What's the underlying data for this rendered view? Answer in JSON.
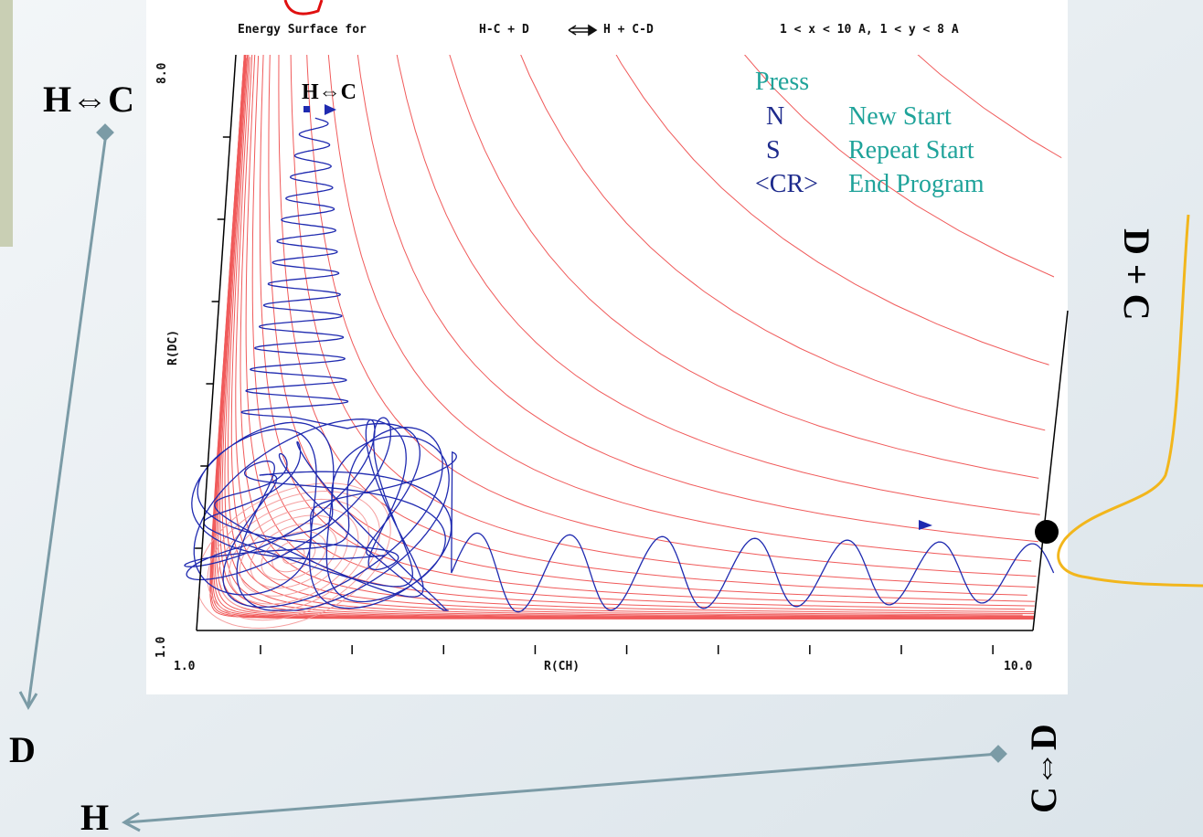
{
  "plot": {
    "title_left": "Energy Surface for",
    "title_reactants": "H-C + D",
    "title_products": "H + C-D",
    "range": "1 < x < 10 A, 1 < y < 8 A",
    "x_label": "R(CH)",
    "y_label": "R(DC)",
    "x_tick_min": "1.0",
    "x_tick_max": "10.0",
    "y_tick_min": "1.0",
    "y_tick_max": "8.0",
    "trajectory_label": "H⇔C",
    "menu": {
      "heading": "Press",
      "items": [
        {
          "key": "N",
          "action": "New Start"
        },
        {
          "key": "S",
          "action": "Repeat Start"
        },
        {
          "key": "<CR>",
          "action": "End Program"
        }
      ]
    }
  },
  "annotations": {
    "top_left": "H⇔C",
    "left_bottom": "D",
    "bottom": "H",
    "bottom_right": "C⇔D",
    "right": "D + C"
  }
}
